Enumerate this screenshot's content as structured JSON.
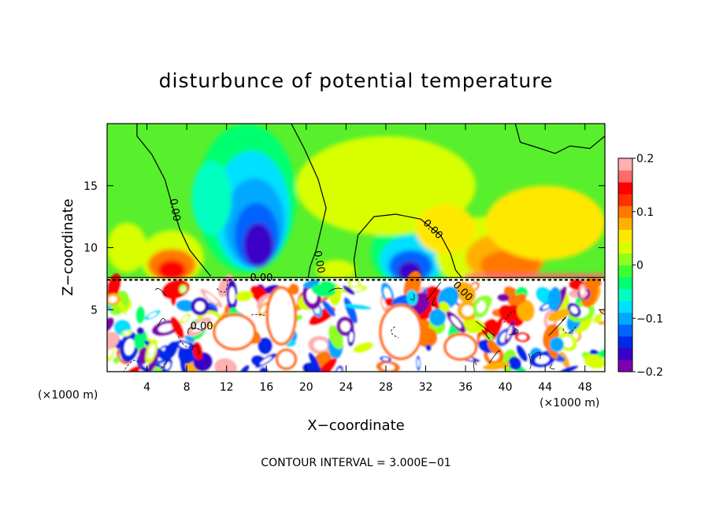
{
  "chart_data": {
    "type": "heatmap",
    "title": "disturbunce of potential temperature",
    "xlabel": "X−coordinate",
    "ylabel": "Z−coordinate",
    "x_unit": "(×1000 m)",
    "x_unit_right": "(×1000 m)",
    "xlim": [
      0,
      50
    ],
    "ylim": [
      0,
      20
    ],
    "x_ticks": [
      "4",
      "8",
      "12",
      "16",
      "20",
      "24",
      "28",
      "32",
      "36",
      "40",
      "44",
      "48"
    ],
    "x_tick_values": [
      4,
      8,
      12,
      16,
      20,
      24,
      28,
      32,
      36,
      40,
      44,
      48
    ],
    "y_ticks": [
      "5",
      "10",
      "15"
    ],
    "y_tick_values": [
      5,
      10,
      15
    ],
    "colorbar": {
      "min": -0.2,
      "max": 0.2,
      "tick_labels": [
        "0.2",
        "0.1",
        "0",
        "−0.1",
        "−0.2"
      ],
      "tick_values": [
        0.2,
        0.1,
        0,
        -0.1,
        -0.2
      ],
      "colors": [
        "#7f00b0",
        "#3a00c8",
        "#0028e8",
        "#0064ff",
        "#00a8ff",
        "#00e0ff",
        "#00ffc0",
        "#00ff70",
        "#40ff30",
        "#90ff20",
        "#d8ff00",
        "#ffe800",
        "#ffb000",
        "#ff7800",
        "#ff3000",
        "#ff0000",
        "#ff6a6a",
        "#ffb0b0"
      ]
    },
    "contour_labels": [
      "0.00",
      "0.00",
      "0.00",
      "0.00",
      "0.00",
      "0.00"
    ],
    "contour_label_positions": [
      [
        6.5,
        13.0
      ],
      [
        21.0,
        8.8
      ],
      [
        32.5,
        11.3
      ],
      [
        15.5,
        7.3
      ],
      [
        35.5,
        6.3
      ],
      [
        9.5,
        3.4
      ]
    ],
    "features": [
      {
        "kind": "cold_anomaly",
        "x": 14.8,
        "z": 11.0,
        "value": -0.15
      },
      {
        "kind": "cold_anomaly",
        "x": 30.5,
        "z": 8.8,
        "value": -0.16
      },
      {
        "kind": "warm_anomaly",
        "x": 6.5,
        "z": 9.0,
        "value": 0.14
      },
      {
        "kind": "warm_anomaly",
        "x": 40.0,
        "z": 9.0,
        "value": 0.11
      },
      {
        "kind": "turbulent_layer",
        "z_top": 7.5
      }
    ],
    "contour_interval_note": "CONTOUR INTERVAL = 3.000E−01"
  }
}
